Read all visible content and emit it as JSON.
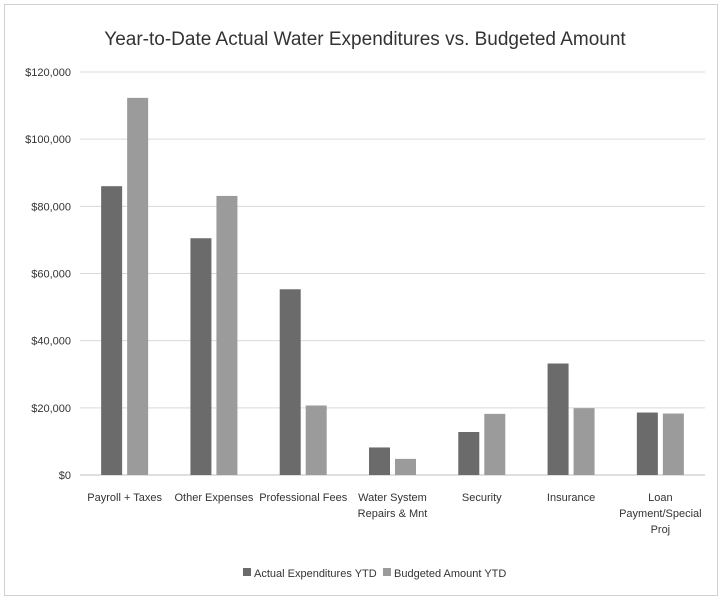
{
  "chart_data": {
    "type": "bar",
    "title": "Year-to-Date Actual Water Expenditures vs. Budgeted Amount",
    "categories": [
      [
        "Payroll + Taxes"
      ],
      [
        "Other Expenses"
      ],
      [
        "Professional Fees"
      ],
      [
        "Water System",
        "Repairs & Mnt"
      ],
      [
        "Security"
      ],
      [
        "Insurance"
      ],
      [
        "Loan",
        "Payment/Special",
        "Proj"
      ]
    ],
    "series": [
      {
        "name": "Actual Expenditures YTD",
        "color": "#6b6b6b",
        "values": [
          86000,
          70500,
          55300,
          8200,
          12800,
          33200,
          18600
        ]
      },
      {
        "name": "Budgeted Amount YTD",
        "color": "#9b9b9b",
        "values": [
          112300,
          83100,
          20700,
          4800,
          18200,
          19900,
          18300
        ]
      }
    ],
    "ylim": [
      0,
      120000
    ],
    "yticks": [
      0,
      20000,
      40000,
      60000,
      80000,
      100000,
      120000
    ],
    "ytick_labels": [
      "$0",
      "$20,000",
      "$40,000",
      "$60,000",
      "$80,000",
      "$100,000",
      "$120,000"
    ],
    "grid": true,
    "legend": "bottom"
  }
}
